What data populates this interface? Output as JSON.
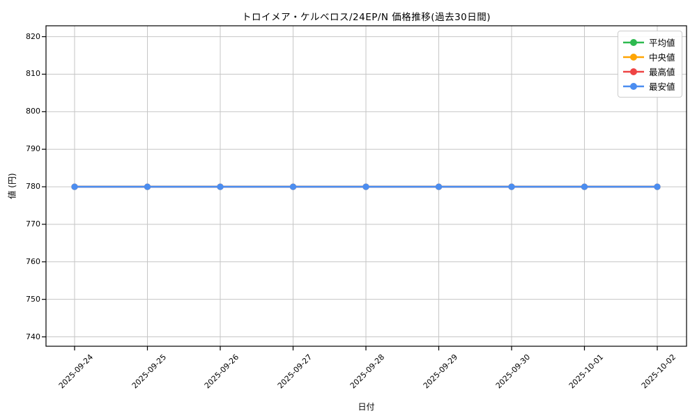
{
  "chart_data": {
    "type": "line",
    "title": "トロイメア・ケルベロス/24EP/N 価格推移(過去30日間)",
    "xlabel": "日付",
    "ylabel": "値 (円)",
    "categories": [
      "2025-09-24",
      "2025-09-25",
      "2025-09-26",
      "2025-09-27",
      "2025-09-28",
      "2025-09-29",
      "2025-09-30",
      "2025-10-01",
      "2025-10-02"
    ],
    "yticks": [
      740,
      750,
      760,
      770,
      780,
      790,
      800,
      810,
      820
    ],
    "ylim": [
      737.5,
      822.9
    ],
    "grid": true,
    "legend_position": "upper right",
    "series": [
      {
        "name": "平均値",
        "color": "#2eba50",
        "values": [
          780,
          780,
          780,
          780,
          780,
          780,
          780,
          780,
          780
        ]
      },
      {
        "name": "中央値",
        "color": "#ffa502",
        "values": [
          780,
          780,
          780,
          780,
          780,
          780,
          780,
          780,
          780
        ]
      },
      {
        "name": "最高値",
        "color": "#ee4444",
        "values": [
          780,
          780,
          780,
          780,
          780,
          780,
          780,
          780,
          780
        ]
      },
      {
        "name": "最安値",
        "color": "#4b8df0",
        "values": [
          780,
          780,
          780,
          780,
          780,
          780,
          780,
          780,
          780
        ]
      }
    ],
    "style": {
      "grid_color": "#c6c6c6",
      "spine_color": "#000000",
      "background": "#ffffff"
    }
  }
}
